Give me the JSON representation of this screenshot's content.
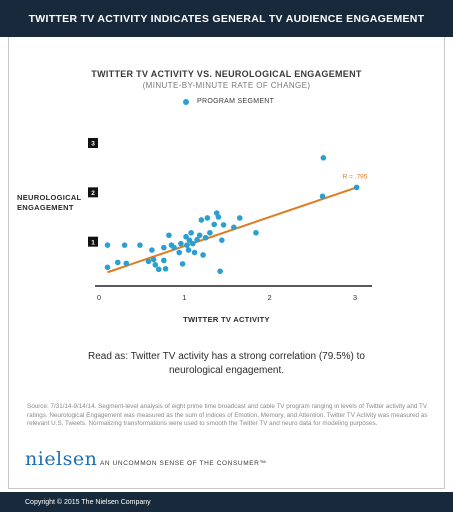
{
  "header": {
    "title": "TWITTER TV ACTIVITY INDICATES GENERAL TV AUDIENCE ENGAGEMENT"
  },
  "chart_data": {
    "type": "scatter",
    "title": "TWITTER TV ACTIVITY VS. NEUROLOGICAL ENGAGEMENT",
    "subtitle": "(MINUTE-BY-MINUTE RATE OF CHANGE)",
    "xlabel": "TWITTER TV ACTIVITY",
    "ylabel": [
      "NEUROLOGICAL",
      "ENGAGEMENT"
    ],
    "xlim": [
      0,
      3.2
    ],
    "ylim": [
      0,
      3.0
    ],
    "x_ticks": [
      "0",
      "1",
      "2",
      "3"
    ],
    "y_ticks": [
      "1",
      "2",
      "3"
    ],
    "grid": false,
    "legend": {
      "position": "top-center",
      "entries": [
        "PROGRAM SEGMENT"
      ]
    },
    "annotation": "R = .795",
    "series": [
      {
        "name": "PROGRAM SEGMENT",
        "color": "#2a9fd0",
        "points": [
          [
            0.1,
            0.93
          ],
          [
            0.1,
            0.48
          ],
          [
            0.22,
            0.58
          ],
          [
            0.3,
            0.93
          ],
          [
            0.32,
            0.56
          ],
          [
            0.48,
            0.93
          ],
          [
            0.58,
            0.6
          ],
          [
            0.62,
            0.83
          ],
          [
            0.64,
            0.64
          ],
          [
            0.66,
            0.53
          ],
          [
            0.7,
            0.44
          ],
          [
            0.76,
            0.88
          ],
          [
            0.76,
            0.62
          ],
          [
            0.78,
            0.45
          ],
          [
            0.82,
            1.13
          ],
          [
            0.85,
            0.93
          ],
          [
            0.88,
            0.88
          ],
          [
            0.94,
            0.78
          ],
          [
            0.96,
            0.96
          ],
          [
            0.98,
            0.55
          ],
          [
            1.02,
            1.1
          ],
          [
            1.03,
            0.93
          ],
          [
            1.05,
            0.83
          ],
          [
            1.06,
            1.03
          ],
          [
            1.08,
            1.18
          ],
          [
            1.1,
            0.96
          ],
          [
            1.12,
            0.78
          ],
          [
            1.15,
            1.04
          ],
          [
            1.18,
            1.13
          ],
          [
            1.2,
            1.44
          ],
          [
            1.22,
            0.73
          ],
          [
            1.25,
            1.08
          ],
          [
            1.27,
            1.48
          ],
          [
            1.3,
            1.18
          ],
          [
            1.35,
            1.35
          ],
          [
            1.38,
            1.58
          ],
          [
            1.4,
            1.5
          ],
          [
            1.42,
            0.4
          ],
          [
            1.44,
            1.03
          ],
          [
            1.46,
            1.34
          ],
          [
            1.58,
            1.29
          ],
          [
            1.65,
            1.48
          ],
          [
            1.84,
            1.18
          ],
          [
            2.62,
            1.92
          ],
          [
            2.63,
            2.7
          ]
        ]
      }
    ],
    "fit_line": {
      "color": "#e07b22",
      "points": [
        [
          0.1,
          0.38
        ],
        [
          3.02,
          2.1
        ]
      ]
    },
    "fit_point": [
      3.02,
      2.1
    ]
  },
  "read_as": "Read as: Twitter TV activity has a strong correlation (79.5%) to neurological engagement.",
  "source": "Source: 7/31/14-9/14/14. Segment-level analysis of eight prime time broadcast and cable TV program ranging in levels of Twitter activity and TV ratings. Neurological Engagement was measured as the sum of indices of Emotion, Memory, and Attention. Twitter TV Activity was measured as relevant U.S. Tweets. Normalizing transformations were used to smooth the Twitter TV and neuro data for modeling purposes.",
  "brand": {
    "logo": "nielsen",
    "tagline": "AN UNCOMMON SENSE OF THE CONSUMER™",
    "accent_color": "#1f6fb5"
  },
  "footer": {
    "copyright": "Copyright © 2015 The Nielsen Company"
  }
}
